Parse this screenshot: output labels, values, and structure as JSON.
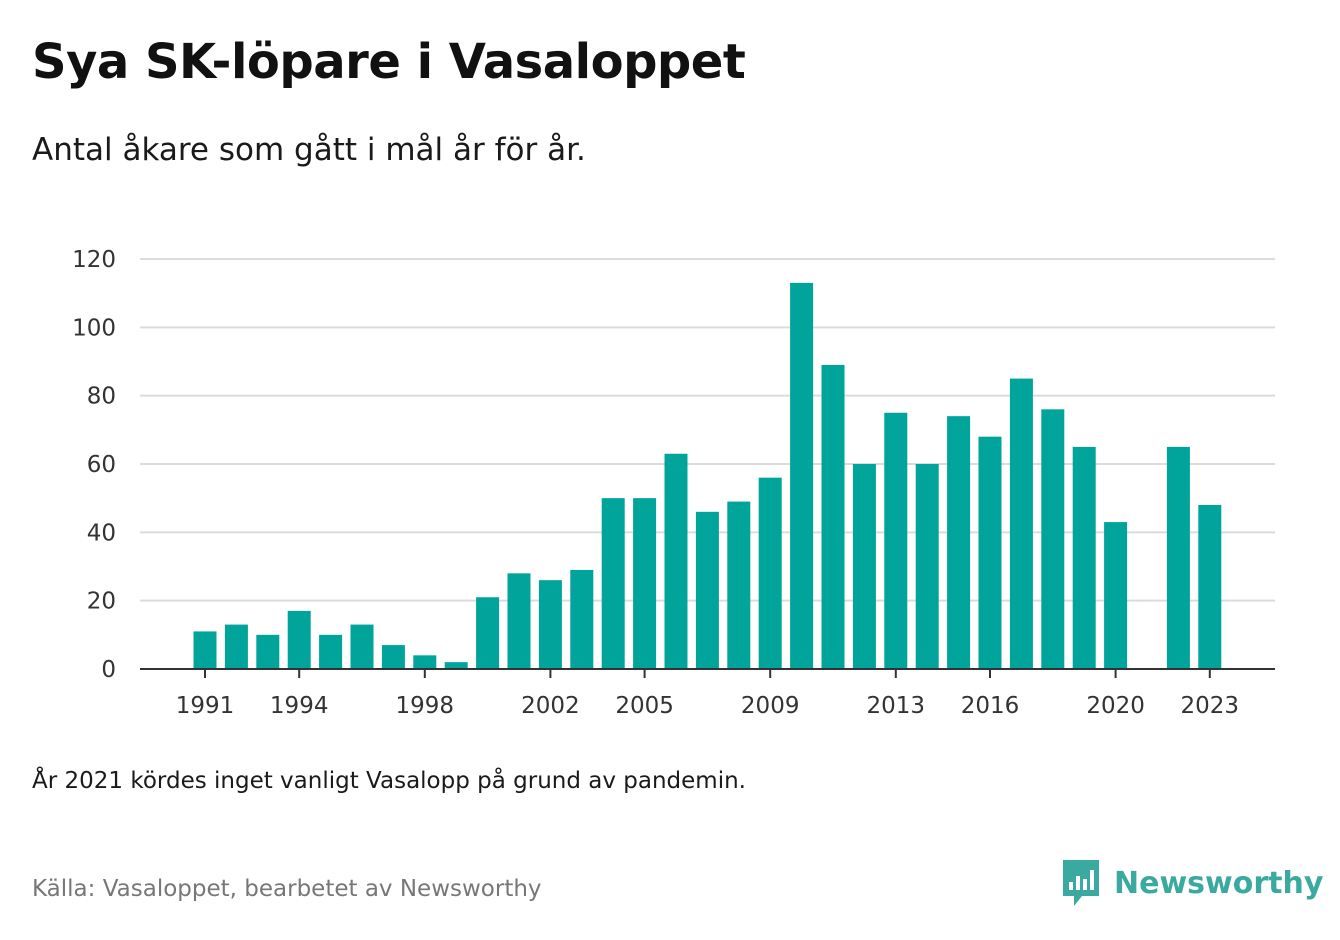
{
  "header": {
    "title": "Sya SK-löpare i Vasaloppet",
    "subtitle": "Antal åkare som gått i mål år för år."
  },
  "footer": {
    "note": "År 2021 kördes inget vanligt Vasalopp på grund av pandemin.",
    "source": "Källa: Vasaloppet, bearbetet av Newsworthy",
    "brand": "Newsworthy"
  },
  "colors": {
    "bar": "#00a49a",
    "grid": "#dcdcdc",
    "axis": "#333333",
    "brand": "#3aa99f"
  },
  "chart_data": {
    "type": "bar",
    "title": "Sya SK-löpare i Vasaloppet",
    "subtitle": "Antal åkare som gått i mål år för år.",
    "categories": [
      1991,
      1992,
      1993,
      1994,
      1995,
      1996,
      1997,
      1998,
      1999,
      2000,
      2001,
      2002,
      2003,
      2004,
      2005,
      2006,
      2007,
      2008,
      2009,
      2010,
      2011,
      2012,
      2013,
      2014,
      2015,
      2016,
      2017,
      2018,
      2019,
      2020,
      2021,
      2022,
      2023
    ],
    "values": [
      11,
      13,
      10,
      17,
      10,
      13,
      7,
      4,
      2,
      21,
      28,
      26,
      29,
      50,
      50,
      63,
      46,
      49,
      56,
      113,
      89,
      60,
      75,
      60,
      74,
      68,
      85,
      76,
      65,
      43,
      null,
      65,
      48
    ],
    "x_tick_labels": [
      "1991",
      "1994",
      "1998",
      "2002",
      "2005",
      "2009",
      "2013",
      "2016",
      "2020",
      "2023"
    ],
    "y_ticks": [
      0,
      20,
      40,
      60,
      80,
      100,
      120
    ],
    "ylim": [
      0,
      120
    ],
    "grid": true,
    "legend": "none"
  }
}
